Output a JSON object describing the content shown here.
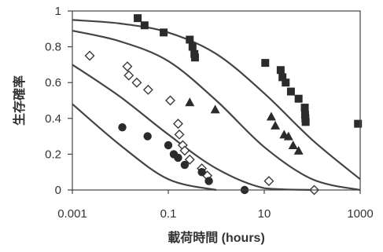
{
  "chart_data": {
    "type": "scatter",
    "title": "",
    "xlabel": "載荷時間 (hours)",
    "ylabel": "生存確率",
    "xscale": "log",
    "xlim": [
      0.001,
      1000
    ],
    "ylim": [
      0,
      1
    ],
    "xticks": [
      0.001,
      0.1,
      10,
      1000
    ],
    "xtick_labels": [
      "0.001",
      "0.1",
      "10",
      "1000"
    ],
    "yticks": [
      0,
      0.2,
      0.4,
      0.6,
      0.8,
      1
    ],
    "ytick_labels": [
      "0",
      "0.2",
      "0.4",
      "0.6",
      "0.8",
      "1"
    ],
    "grid": false,
    "legend": "none",
    "colors": {
      "marker_fill": "#2b2b2b",
      "curve": "#444444",
      "axis_text": "#333333"
    },
    "series": [
      {
        "marker": "filled-square",
        "points": [
          [
            0.023,
            0.96
          ],
          [
            0.032,
            0.92
          ],
          [
            0.08,
            0.88
          ],
          [
            0.28,
            0.84
          ],
          [
            0.32,
            0.8
          ],
          [
            0.35,
            0.76
          ],
          [
            0.36,
            0.74
          ],
          [
            10.5,
            0.71
          ],
          [
            22,
            0.67
          ],
          [
            24,
            0.63
          ],
          [
            28,
            0.6
          ],
          [
            36,
            0.55
          ],
          [
            52,
            0.51
          ],
          [
            70,
            0.46
          ],
          [
            71,
            0.42
          ],
          [
            72,
            0.4
          ],
          [
            73,
            0.38
          ],
          [
            900,
            0.37
          ]
        ]
      },
      {
        "marker": "filled-triangle",
        "points": [
          [
            0.28,
            0.49
          ],
          [
            0.95,
            0.45
          ],
          [
            14,
            0.41
          ],
          [
            17,
            0.36
          ],
          [
            26,
            0.31
          ],
          [
            32,
            0.3
          ],
          [
            40,
            0.25
          ],
          [
            52,
            0.22
          ]
        ]
      },
      {
        "marker": "open-diamond",
        "points": [
          [
            0.0023,
            0.75
          ],
          [
            0.014,
            0.69
          ],
          [
            0.015,
            0.64
          ],
          [
            0.022,
            0.6
          ],
          [
            0.038,
            0.56
          ],
          [
            0.11,
            0.5
          ],
          [
            0.16,
            0.37
          ],
          [
            0.17,
            0.31
          ],
          [
            0.2,
            0.25
          ],
          [
            0.22,
            0.22
          ],
          [
            0.28,
            0.17
          ],
          [
            0.5,
            0.12
          ],
          [
            0.65,
            0.08
          ],
          [
            12.5,
            0.05
          ],
          [
            110,
            0.0
          ]
        ]
      },
      {
        "marker": "filled-circle",
        "points": [
          [
            0.011,
            0.35
          ],
          [
            0.037,
            0.3
          ],
          [
            0.1,
            0.25
          ],
          [
            0.13,
            0.2
          ],
          [
            0.16,
            0.18
          ],
          [
            0.22,
            0.14
          ],
          [
            0.5,
            0.1
          ],
          [
            0.7,
            0.05
          ],
          [
            3.9,
            0.0
          ]
        ]
      }
    ],
    "curves": [
      {
        "points": [
          [
            0.001,
            0.48
          ],
          [
            0.01,
            0.25
          ],
          [
            0.1,
            0.06
          ],
          [
            1,
            0.0
          ]
        ]
      },
      {
        "points": [
          [
            0.001,
            0.7
          ],
          [
            0.01,
            0.52
          ],
          [
            0.1,
            0.31
          ],
          [
            1,
            0.12
          ],
          [
            10,
            0.01
          ],
          [
            100,
            0.0
          ]
        ]
      },
      {
        "points": [
          [
            0.001,
            0.89
          ],
          [
            0.01,
            0.83
          ],
          [
            0.1,
            0.72
          ],
          [
            1,
            0.5
          ],
          [
            10,
            0.24
          ],
          [
            100,
            0.06
          ],
          [
            1000,
            0.0
          ]
        ]
      },
      {
        "points": [
          [
            0.001,
            0.95
          ],
          [
            0.01,
            0.93
          ],
          [
            0.1,
            0.88
          ],
          [
            1,
            0.76
          ],
          [
            10,
            0.54
          ],
          [
            100,
            0.28
          ],
          [
            1000,
            0.06
          ]
        ]
      }
    ]
  }
}
